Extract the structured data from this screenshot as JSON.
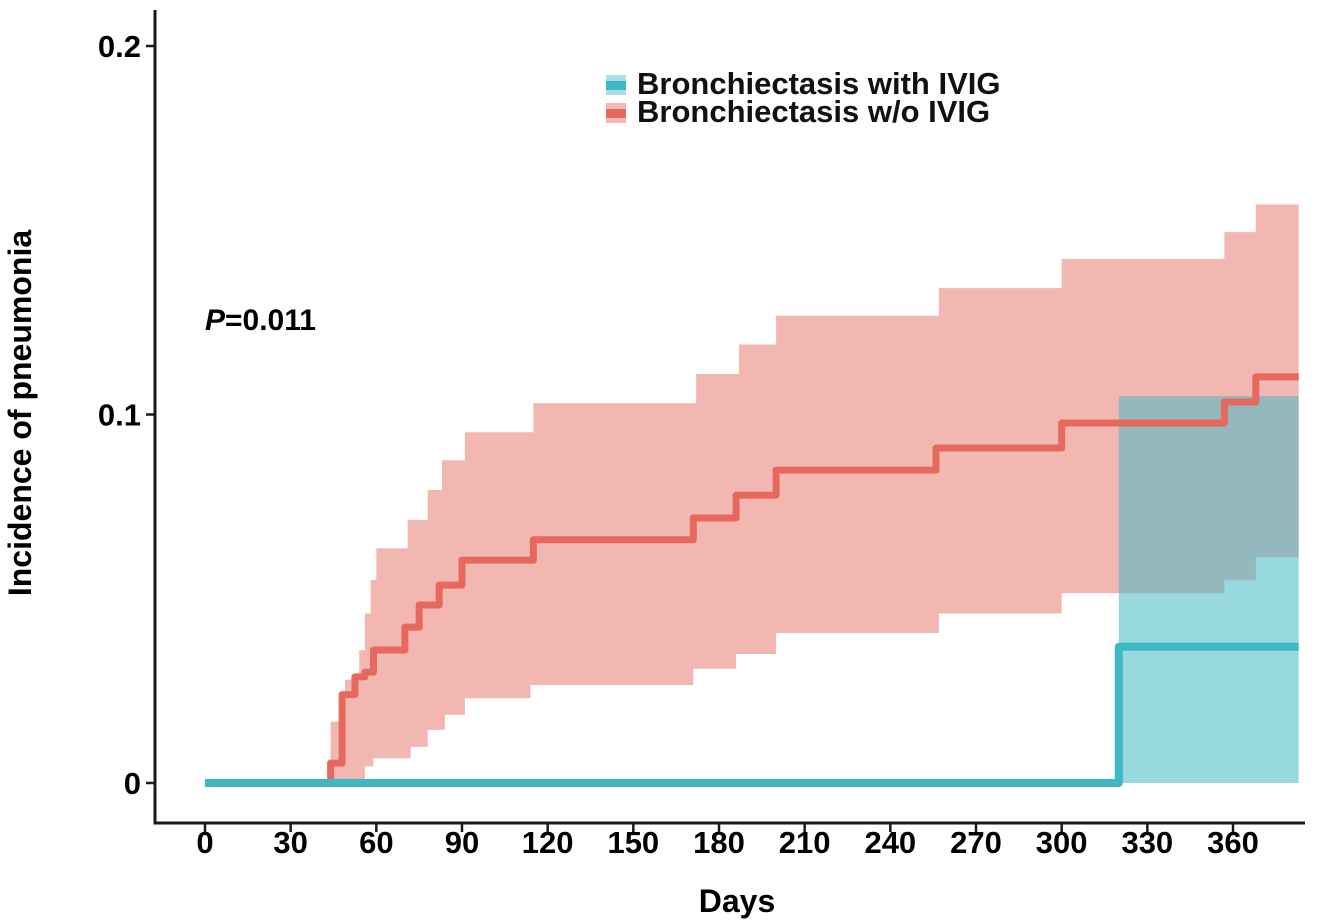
{
  "figure": {
    "background": "#ffffff",
    "axis_color": "#1a1a1a"
  },
  "chart_data": {
    "type": "line",
    "style": "kaplan-meier-cumulative-incidence-step",
    "title": "",
    "xlabel": "Days",
    "ylabel": "Incidence of pneumonia",
    "grid": false,
    "legend_position": "top-center",
    "annotation": {
      "p_italic": "P",
      "rest": "=0.011",
      "text": "P=0.011"
    },
    "x_axis": {
      "ticks": [
        0,
        30,
        60,
        90,
        120,
        150,
        180,
        210,
        240,
        270,
        300,
        330,
        360
      ],
      "data_end_day": 383
    },
    "y_axis": {
      "ticks": [
        0,
        0.1,
        0.2
      ],
      "tick_labels": [
        "0",
        "0.1",
        "0.2"
      ],
      "range": [
        0,
        0.2
      ]
    },
    "series": [
      {
        "name": "Bronchiectasis with IVIG",
        "line_color": "#3fb8c5",
        "band_fill": "#44b9c6",
        "band_alpha": 0.55,
        "line_width": 8,
        "end_day": 383,
        "line_steps": [
          [
            0,
            0
          ],
          [
            320,
            0.037
          ]
        ],
        "band": {
          "upper": [
            [
              320,
              0.105
            ]
          ],
          "lower": [
            [
              320,
              0
            ]
          ]
        }
      },
      {
        "name": "Bronchiectasis w/o IVIG",
        "line_color": "#e7695d",
        "band_fill": "#e77065",
        "band_alpha": 0.5,
        "line_width": 7,
        "end_day": 383,
        "line_steps": [
          [
            0,
            0
          ],
          [
            44,
            0.0054
          ],
          [
            48,
            0.024
          ],
          [
            52.5,
            0.0288
          ],
          [
            56,
            0.0301
          ],
          [
            59,
            0.0361
          ],
          [
            70,
            0.0423
          ],
          [
            75,
            0.0483
          ],
          [
            82,
            0.0537
          ],
          [
            90,
            0.0605
          ],
          [
            115,
            0.066
          ],
          [
            171,
            0.0719
          ],
          [
            186,
            0.0781
          ],
          [
            200,
            0.0849
          ],
          [
            256,
            0.0909
          ],
          [
            300,
            0.0977
          ],
          [
            357,
            0.1034
          ],
          [
            368,
            0.1102
          ]
        ],
        "band": {
          "upper": [
            [
              44,
              0.0166
            ],
            [
              49,
              0.028
            ],
            [
              54,
              0.036
            ],
            [
              56,
              0.046
            ],
            [
              58,
              0.0551
            ],
            [
              60,
              0.0637
            ],
            [
              71,
              0.0714
            ],
            [
              78,
              0.0795
            ],
            [
              83,
              0.0876
            ],
            [
              91,
              0.0952
            ],
            [
              115,
              0.1031
            ],
            [
              172,
              0.111
            ],
            [
              187,
              0.119
            ],
            [
              200,
              0.1268
            ],
            [
              257,
              0.1343
            ],
            [
              300,
              0.1422
            ],
            [
              357,
              0.1495
            ],
            [
              368,
              0.157
            ]
          ],
          "lower": [
            [
              44,
              0
            ],
            [
              56,
              0.0045
            ],
            [
              59,
              0.0067
            ],
            [
              72,
              0.0098
            ],
            [
              78,
              0.0144
            ],
            [
              84,
              0.0185
            ],
            [
              91,
              0.023
            ],
            [
              114,
              0.0266
            ],
            [
              171,
              0.031
            ],
            [
              186,
              0.035
            ],
            [
              200,
              0.0407
            ],
            [
              257,
              0.046
            ],
            [
              300,
              0.0515
            ],
            [
              357,
              0.055
            ],
            [
              368,
              0.0613
            ]
          ]
        }
      }
    ]
  }
}
